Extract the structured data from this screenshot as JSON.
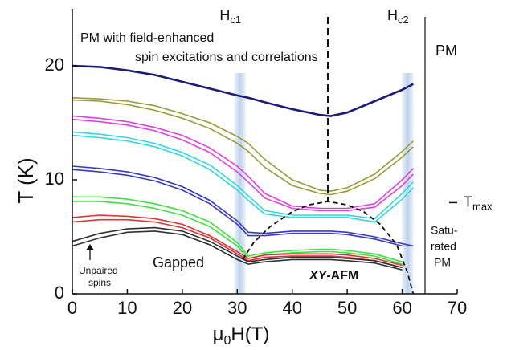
{
  "chart_data": {
    "type": "line",
    "x_label": {
      "main": "μ",
      "sub": "0",
      "rest": "H(T)"
    },
    "y_label": "T (K)",
    "xlim": [
      0,
      70
    ],
    "xticks": [
      0,
      10,
      20,
      30,
      40,
      50,
      60,
      70
    ],
    "ylim": [
      0,
      25
    ],
    "yticks": [
      0,
      10,
      20
    ],
    "x": [
      0,
      5,
      10,
      15,
      20,
      25,
      30,
      32,
      35,
      40,
      45,
      47,
      50,
      55,
      60,
      62
    ],
    "series": [
      {
        "color": "#1c1c78",
        "values": [
          20,
          19.9,
          19.6,
          19.2,
          18.6,
          18,
          17.4,
          17.2,
          16.8,
          16.2,
          15.7,
          15.6,
          15.9,
          16.9,
          17.9,
          18.4
        ]
      },
      {
        "color": "#9a9a3a",
        "values": [
          17.2,
          17.1,
          16.9,
          16.5,
          15.8,
          15,
          13.8,
          13.2,
          11.8,
          10,
          9.1,
          9,
          9.3,
          10.5,
          12.5,
          13.4
        ]
      },
      {
        "color": "#9a9a3a",
        "values": [
          17,
          16.9,
          16.6,
          16.1,
          15.4,
          14.5,
          13.2,
          12.5,
          11.1,
          9.5,
          8.8,
          8.7,
          9,
          10.1,
          12,
          12.9
        ]
      },
      {
        "color": "#e040e0",
        "values": [
          15.6,
          15.4,
          15.1,
          14.6,
          13.9,
          12.8,
          11.2,
          10.3,
          8.8,
          7.7,
          7.5,
          7.5,
          7.5,
          7.9,
          10,
          11
        ]
      },
      {
        "color": "#e040e0",
        "values": [
          15.3,
          15.1,
          14.8,
          14.3,
          13.5,
          12.4,
          10.7,
          9.8,
          8.4,
          7.5,
          7.3,
          7.3,
          7.3,
          7.6,
          9.5,
          10.5
        ]
      },
      {
        "color": "#30d8e0",
        "values": [
          14.2,
          14,
          13.7,
          13.2,
          12.4,
          11.3,
          9.5,
          8.6,
          7.3,
          6.9,
          6.9,
          6.9,
          6.9,
          6.6,
          8.8,
          9.8
        ]
      },
      {
        "color": "#30d8e0",
        "values": [
          13.9,
          13.7,
          13.4,
          12.9,
          12.1,
          10.9,
          9.1,
          8.2,
          7,
          6.7,
          6.7,
          6.7,
          6.7,
          6.3,
          8.3,
          9.3
        ]
      },
      {
        "color": "#3838c8",
        "values": [
          11.2,
          11,
          10.7,
          10.2,
          9.4,
          8.2,
          6.4,
          5.4,
          5.3,
          5.5,
          5.5,
          5.5,
          5.4,
          5,
          4.4,
          4.2
        ]
      },
      {
        "color": "#3838c8",
        "values": [
          10.9,
          10.7,
          10.4,
          9.9,
          9.1,
          7.9,
          6.1,
          5.1,
          5.1,
          5.3,
          5.3,
          5.3,
          5.2,
          4.8,
          4.2,
          null
        ]
      },
      {
        "color": "#40e040",
        "values": [
          8.5,
          8.5,
          8.3,
          7.9,
          7.3,
          6.3,
          4.5,
          3.3,
          3.6,
          3.8,
          3.9,
          3.9,
          3.8,
          3.5,
          2.8,
          null
        ]
      },
      {
        "color": "#40e040",
        "values": [
          8.1,
          8.1,
          7.9,
          7.5,
          6.9,
          5.9,
          4.2,
          3.1,
          3.4,
          3.6,
          3.7,
          3.7,
          3.6,
          3.3,
          2.6,
          null
        ]
      },
      {
        "color": "#e03030",
        "values": [
          6.7,
          6.9,
          6.8,
          6.6,
          6.1,
          5.1,
          3.7,
          3.1,
          3.4,
          3.5,
          3.5,
          3.5,
          3.4,
          3.1,
          2.5,
          null
        ]
      },
      {
        "color": "#e03030",
        "values": [
          6.3,
          6.5,
          6.5,
          6.3,
          5.8,
          4.9,
          3.5,
          2.9,
          3.2,
          3.3,
          3.3,
          3.3,
          3.2,
          2.9,
          2.3,
          null
        ]
      },
      {
        "color": "#303030",
        "values": [
          4.6,
          5.3,
          5.7,
          5.8,
          5.5,
          4.6,
          3.3,
          2.8,
          3,
          3.2,
          3.2,
          3.2,
          3.1,
          2.9,
          2.3,
          null
        ]
      },
      {
        "color": "#303030",
        "values": [
          4.2,
          4.9,
          5.4,
          5.5,
          5.2,
          4.3,
          3,
          2.6,
          2.8,
          3,
          3,
          3,
          2.9,
          2.7,
          2.1,
          null
        ]
      }
    ],
    "phase_boundary": {
      "x": [
        31,
        33,
        36,
        40,
        43,
        46.5,
        50,
        53,
        56,
        59,
        61,
        62
      ],
      "values": [
        3,
        4.5,
        5.9,
        7.2,
        7.8,
        8.1,
        7.8,
        7.2,
        6.1,
        4.3,
        1.8,
        0
      ]
    },
    "critical_fields": [
      {
        "main": "H",
        "sub": "c1",
        "x": 30.5
      },
      {
        "main": "H",
        "sub": "c2",
        "x": 61
      }
    ],
    "t_max": {
      "main": "T",
      "sub": "max",
      "value": 8
    },
    "annotations": {
      "pm_line1": "PM with field-enhanced",
      "pm_line2": "spin excitations and correlations",
      "pm": "PM",
      "gapped": "Gapped",
      "afm_italic": "XY",
      "afm_rest": "-AFM",
      "unpaired1": "Unpaired",
      "unpaired2": "spins",
      "sat1": "Satu-",
      "sat2": "rated",
      "sat3": "PM"
    }
  }
}
